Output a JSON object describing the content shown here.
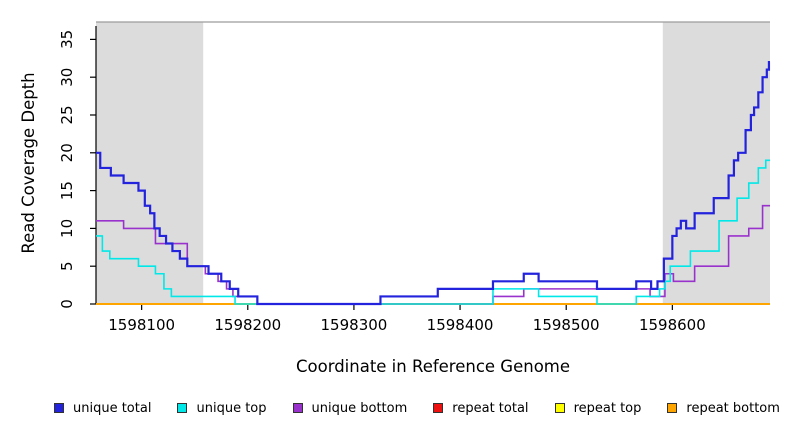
{
  "chart_data": {
    "type": "line",
    "subtype": "step",
    "title": "",
    "xlabel": "Coordinate in Reference Genome",
    "ylabel": "Read Coverage Depth",
    "xlim": [
      1598057,
      1598692
    ],
    "ylim": [
      0,
      37.3
    ],
    "x_ticks": [
      1598100,
      1598200,
      1598300,
      1598400,
      1598500,
      1598600
    ],
    "y_ticks": [
      0,
      5,
      10,
      15,
      20,
      25,
      30,
      35
    ],
    "grid": false,
    "legend_position": "bottom",
    "shaded_regions": [
      {
        "from": 1598057,
        "to": 1598158,
        "color": "#dcdcdc"
      },
      {
        "from": 1598591,
        "to": 1598692,
        "color": "#dcdcdc"
      }
    ],
    "series": [
      {
        "name": "repeat total",
        "color": "#ee1111",
        "width": 1.6,
        "points": [
          [
            1598057,
            0
          ]
        ]
      },
      {
        "name": "repeat top",
        "color": "#ffff00",
        "width": 1.6,
        "points": [
          [
            1598057,
            0
          ]
        ]
      },
      {
        "name": "repeat bottom",
        "color": "#ffa500",
        "width": 2,
        "points": [
          [
            1598057,
            0
          ]
        ]
      },
      {
        "name": "unique bottom",
        "color": "#9932cc",
        "width": 1.6,
        "points": [
          [
            1598057,
            11
          ],
          [
            1598083,
            10
          ],
          [
            1598113,
            8
          ],
          [
            1598143,
            5
          ],
          [
            1598160,
            4
          ],
          [
            1598172,
            3
          ],
          [
            1598180,
            2
          ],
          [
            1598186,
            1
          ],
          [
            1598209,
            0
          ],
          [
            1598431,
            1
          ],
          [
            1598460,
            2
          ],
          [
            1598579,
            1
          ],
          [
            1598593,
            4
          ],
          [
            1598601,
            3
          ],
          [
            1598621,
            5
          ],
          [
            1598653,
            9
          ],
          [
            1598672,
            10
          ],
          [
            1598685,
            13
          ]
        ]
      },
      {
        "name": "unique top",
        "color": "#00e8e8",
        "width": 1.6,
        "points": [
          [
            1598057,
            9
          ],
          [
            1598063,
            7
          ],
          [
            1598070,
            6
          ],
          [
            1598097,
            5
          ],
          [
            1598113,
            4
          ],
          [
            1598121,
            2
          ],
          [
            1598128,
            1
          ],
          [
            1598188,
            0
          ],
          [
            1598431,
            2
          ],
          [
            1598474,
            1
          ],
          [
            1598529,
            0
          ],
          [
            1598566,
            1
          ],
          [
            1598588,
            2
          ],
          [
            1598593,
            3
          ],
          [
            1598598,
            5
          ],
          [
            1598617,
            7
          ],
          [
            1598644,
            11
          ],
          [
            1598661,
            14
          ],
          [
            1598672,
            16
          ],
          [
            1598681,
            18
          ],
          [
            1598688,
            19
          ]
        ]
      },
      {
        "name": "unique total",
        "color": "#2323dd",
        "width": 2.2,
        "points": [
          [
            1598057,
            20
          ],
          [
            1598061,
            18
          ],
          [
            1598071,
            17
          ],
          [
            1598083,
            16
          ],
          [
            1598097,
            15
          ],
          [
            1598103,
            13
          ],
          [
            1598108,
            12
          ],
          [
            1598112,
            10
          ],
          [
            1598117,
            9
          ],
          [
            1598123,
            8
          ],
          [
            1598129,
            7
          ],
          [
            1598136,
            6
          ],
          [
            1598143,
            5
          ],
          [
            1598163,
            4
          ],
          [
            1598175,
            3
          ],
          [
            1598183,
            2
          ],
          [
            1598191,
            1
          ],
          [
            1598209,
            0
          ],
          [
            1598325,
            1
          ],
          [
            1598379,
            2
          ],
          [
            1598431,
            3
          ],
          [
            1598460,
            4
          ],
          [
            1598474,
            3
          ],
          [
            1598529,
            2
          ],
          [
            1598566,
            3
          ],
          [
            1598580,
            2
          ],
          [
            1598586,
            3
          ],
          [
            1598592,
            6
          ],
          [
            1598600,
            9
          ],
          [
            1598604,
            10
          ],
          [
            1598608,
            11
          ],
          [
            1598613,
            10
          ],
          [
            1598621,
            12
          ],
          [
            1598639,
            14
          ],
          [
            1598653,
            17
          ],
          [
            1598658,
            19
          ],
          [
            1598662,
            20
          ],
          [
            1598669,
            23
          ],
          [
            1598674,
            25
          ],
          [
            1598677,
            26
          ],
          [
            1598681,
            28
          ],
          [
            1598685,
            30
          ],
          [
            1598689,
            31
          ],
          [
            1598691,
            32
          ]
        ]
      }
    ],
    "legend": [
      {
        "label": "unique total",
        "color": "#2323dd"
      },
      {
        "label": "unique top",
        "color": "#00e8e8"
      },
      {
        "label": "unique bottom",
        "color": "#9932cc"
      },
      {
        "label": "repeat total",
        "color": "#ee1111"
      },
      {
        "label": "repeat top",
        "color": "#ffff00"
      },
      {
        "label": "repeat bottom",
        "color": "#ffa500"
      }
    ],
    "colors": {
      "axis": "#000000",
      "shaded_region": "#dcdcdc",
      "top_border": "#9c9c9c"
    }
  }
}
